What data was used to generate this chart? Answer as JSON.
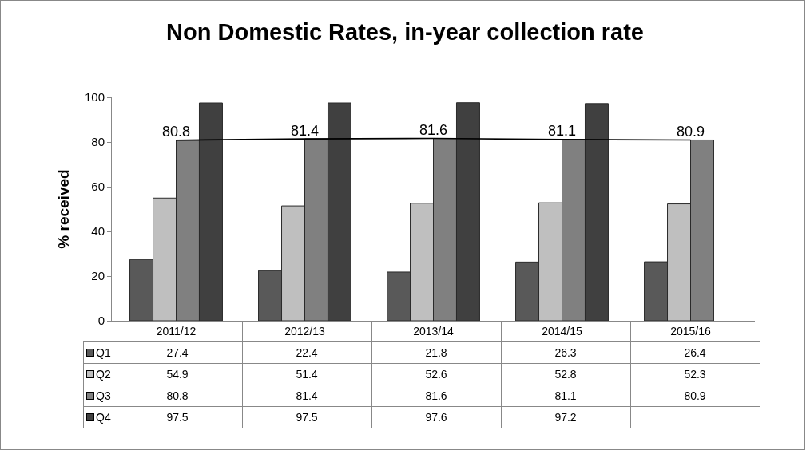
{
  "chart_data": {
    "type": "bar",
    "title": "Non Domestic Rates, in-year collection rate",
    "ylabel": "% received",
    "categories": [
      "2011/12",
      "2012/13",
      "2013/14",
      "2014/15",
      "2015/16"
    ],
    "series": [
      {
        "name": "Q1",
        "color": "#595959",
        "values": [
          27.4,
          22.4,
          21.8,
          26.3,
          26.4
        ]
      },
      {
        "name": "Q2",
        "color": "#bfbfbf",
        "values": [
          54.9,
          51.4,
          52.6,
          52.8,
          52.3
        ]
      },
      {
        "name": "Q3",
        "color": "#808080",
        "values": [
          80.8,
          81.4,
          81.6,
          81.1,
          80.9
        ]
      },
      {
        "name": "Q4",
        "color": "#404040",
        "values": [
          97.5,
          97.5,
          97.6,
          97.2,
          null
        ]
      },
      {
        "type": "line",
        "color": "#000000",
        "values": [
          80.8,
          81.4,
          81.6,
          81.1,
          80.9
        ],
        "value_labels": [
          "80.8",
          "81.4",
          "81.6",
          "81.1",
          "80.9"
        ]
      }
    ],
    "ylim": [
      0,
      100
    ],
    "yticks": [
      0,
      20,
      40,
      60,
      80,
      100
    ],
    "grid": false,
    "legend": "bottom left",
    "data_labels": true,
    "marker": "none"
  }
}
